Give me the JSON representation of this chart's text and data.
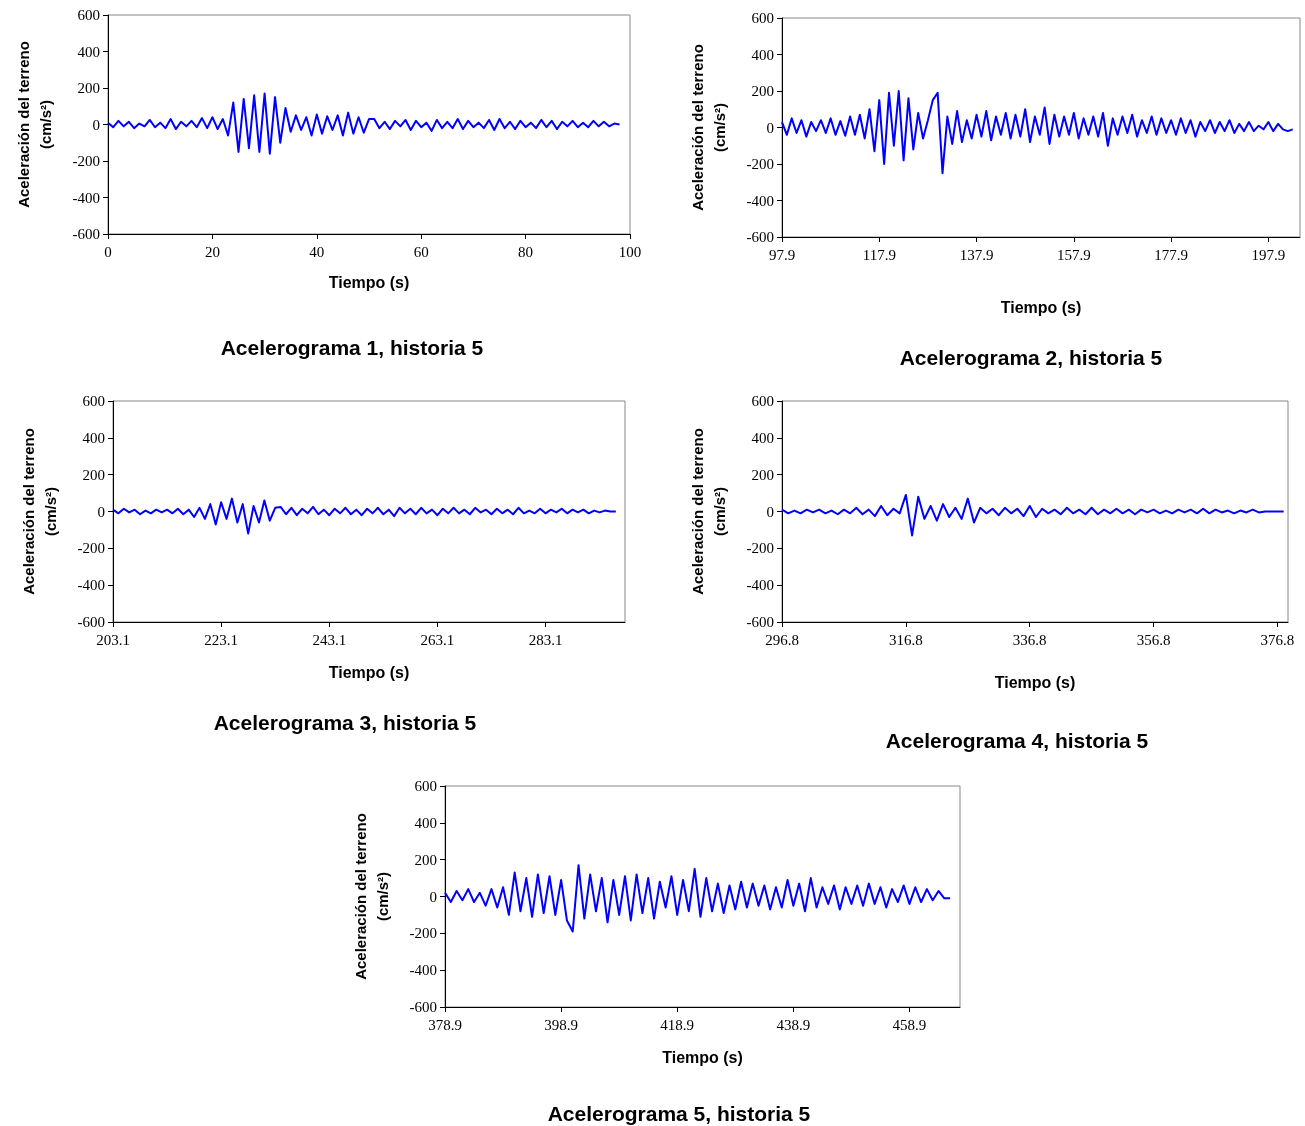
{
  "chart_data": [
    {
      "type": "line",
      "title": "Acelerograma 1, historia 5",
      "xlabel": "Tiempo (s)",
      "ylabel": "Aceleración del terreno\n(cm/s²)",
      "xlim": [
        0,
        100
      ],
      "xticks": [
        0,
        20,
        40,
        60,
        80,
        100
      ],
      "ylim": [
        -600,
        600
      ],
      "yticks": [
        -600,
        -400,
        -200,
        0,
        200,
        400,
        600
      ],
      "x": [
        0,
        1,
        2,
        3,
        4,
        5,
        6,
        7,
        8,
        9,
        10,
        11,
        12,
        13,
        14,
        15,
        16,
        17,
        18,
        19,
        20,
        21,
        22,
        23,
        24,
        25,
        26,
        27,
        28,
        29,
        30,
        31,
        32,
        33,
        34,
        35,
        36,
        37,
        38,
        39,
        40,
        41,
        42,
        43,
        44,
        45,
        46,
        47,
        48,
        49,
        50,
        51,
        52,
        53,
        54,
        55,
        56,
        57,
        58,
        59,
        60,
        61,
        62,
        63,
        64,
        65,
        66,
        67,
        68,
        69,
        70,
        71,
        72,
        73,
        74,
        75,
        76,
        77,
        78,
        79,
        80,
        81,
        82,
        83,
        84,
        85,
        86,
        87,
        88,
        89,
        90,
        91,
        92,
        93,
        94,
        95,
        96,
        97,
        98
      ],
      "series": [
        {
          "color": "#0000ff",
          "values": [
            10,
            -15,
            20,
            -10,
            15,
            -20,
            5,
            -10,
            25,
            -15,
            10,
            -20,
            30,
            -25,
            15,
            -10,
            20,
            -15,
            35,
            -20,
            40,
            -25,
            30,
            -60,
            120,
            -150,
            140,
            -130,
            160,
            -150,
            170,
            -160,
            150,
            -100,
            90,
            -40,
            50,
            -30,
            40,
            -60,
            55,
            -50,
            45,
            -30,
            50,
            -60,
            65,
            -50,
            40,
            -45,
            30,
            30,
            -20,
            15,
            -25,
            20,
            -10,
            25,
            -30,
            20,
            -15,
            10,
            -35,
            25,
            -20,
            15,
            -20,
            30,
            -25,
            20,
            -15,
            10,
            -20,
            25,
            -30,
            30,
            -20,
            15,
            -25,
            20,
            -15,
            10,
            -20,
            25,
            -15,
            20,
            -25,
            15,
            -10,
            20,
            -15,
            10,
            -15,
            20,
            -10,
            15,
            -10,
            5,
            0
          ]
        }
      ]
    },
    {
      "type": "line",
      "title": "Acelerograma 2, historia 5",
      "xlabel": "Tiempo (s)",
      "ylabel": "Aceleración del terreno\n(cm/s²)",
      "xlim": [
        97.9,
        204.4
      ],
      "xticks": [
        97.9,
        117.9,
        137.9,
        157.9,
        177.9,
        197.9
      ],
      "ylim": [
        -600,
        600
      ],
      "yticks": [
        -600,
        -400,
        -200,
        0,
        200,
        400,
        600
      ],
      "x": [
        97.9,
        98.9,
        99.9,
        100.9,
        101.9,
        102.9,
        103.9,
        104.9,
        105.9,
        106.9,
        107.9,
        108.9,
        109.9,
        110.9,
        111.9,
        112.9,
        113.9,
        114.9,
        115.9,
        116.9,
        117.9,
        118.9,
        119.9,
        120.9,
        121.9,
        122.9,
        123.9,
        124.9,
        125.9,
        126.9,
        127.9,
        128.9,
        129.9,
        130.9,
        131.9,
        132.9,
        133.9,
        134.9,
        135.9,
        136.9,
        137.9,
        138.9,
        139.9,
        140.9,
        141.9,
        142.9,
        143.9,
        144.9,
        145.9,
        146.9,
        147.9,
        148.9,
        149.9,
        150.9,
        151.9,
        152.9,
        153.9,
        154.9,
        155.9,
        156.9,
        157.9,
        158.9,
        159.9,
        160.9,
        161.9,
        162.9,
        163.9,
        164.9,
        165.9,
        166.9,
        167.9,
        168.9,
        169.9,
        170.9,
        171.9,
        172.9,
        173.9,
        174.9,
        175.9,
        176.9,
        177.9,
        178.9,
        179.9,
        180.9,
        181.9,
        182.9,
        183.9,
        184.9,
        185.9,
        186.9,
        187.9,
        188.9,
        189.9,
        190.9,
        191.9,
        192.9,
        193.9,
        194.9,
        195.9,
        196.9,
        197.9,
        198.9,
        199.9,
        200.9,
        201.9,
        202.9
      ],
      "series": [
        {
          "color": "#0000ff",
          "values": [
            30,
            -40,
            50,
            -30,
            40,
            -50,
            30,
            -20,
            40,
            -30,
            50,
            -40,
            35,
            -45,
            60,
            -40,
            70,
            -60,
            100,
            -130,
            150,
            -200,
            190,
            -100,
            200,
            -180,
            160,
            -120,
            80,
            -60,
            40,
            150,
            190,
            -250,
            60,
            -90,
            90,
            -80,
            40,
            -60,
            70,
            -50,
            90,
            -70,
            60,
            -40,
            80,
            -60,
            70,
            -50,
            100,
            -80,
            60,
            -40,
            110,
            -90,
            70,
            -50,
            60,
            -40,
            80,
            -60,
            50,
            -40,
            60,
            -50,
            80,
            -100,
            50,
            -40,
            60,
            -30,
            70,
            -50,
            40,
            -30,
            60,
            -40,
            50,
            -30,
            40,
            -40,
            50,
            -30,
            40,
            -50,
            30,
            -20,
            40,
            -30,
            30,
            -20,
            40,
            -30,
            20,
            -20,
            30,
            -20,
            10,
            -10,
            30,
            -20,
            20,
            -10,
            -20,
            -10
          ]
        }
      ]
    },
    {
      "type": "line",
      "title": "Acelerograma 3, historia 5",
      "xlabel": "Tiempo (s)",
      "ylabel": "Aceleración del terreno\n(cm/s²)",
      "xlim": [
        203.1,
        297.8
      ],
      "xticks": [
        203.1,
        223.1,
        243.1,
        263.1,
        283.1
      ],
      "ylim": [
        -600,
        600
      ],
      "yticks": [
        -600,
        -400,
        -200,
        0,
        200,
        400,
        600
      ],
      "x": [
        203.1,
        204.1,
        205.1,
        206.1,
        207.1,
        208.1,
        209.1,
        210.1,
        211.1,
        212.1,
        213.1,
        214.1,
        215.1,
        216.1,
        217.1,
        218.1,
        219.1,
        220.1,
        221.1,
        222.1,
        223.1,
        224.1,
        225.1,
        226.1,
        227.1,
        228.1,
        229.1,
        230.1,
        231.1,
        232.1,
        233.1,
        234.1,
        235.1,
        236.1,
        237.1,
        238.1,
        239.1,
        240.1,
        241.1,
        242.1,
        243.1,
        244.1,
        245.1,
        246.1,
        247.1,
        248.1,
        249.1,
        250.1,
        251.1,
        252.1,
        253.1,
        254.1,
        255.1,
        256.1,
        257.1,
        258.1,
        259.1,
        260.1,
        261.1,
        262.1,
        263.1,
        264.1,
        265.1,
        266.1,
        267.1,
        268.1,
        269.1,
        270.1,
        271.1,
        272.1,
        273.1,
        274.1,
        275.1,
        276.1,
        277.1,
        278.1,
        279.1,
        280.1,
        281.1,
        282.1,
        283.1,
        284.1,
        285.1,
        286.1,
        287.1,
        288.1,
        289.1,
        290.1,
        291.1,
        292.1,
        293.1,
        294.1,
        295.1,
        296.1
      ],
      "series": [
        {
          "color": "#0000ff",
          "values": [
            10,
            -10,
            15,
            -5,
            10,
            -15,
            5,
            -10,
            10,
            -5,
            10,
            -10,
            15,
            -15,
            10,
            -30,
            20,
            -40,
            40,
            -70,
            50,
            -40,
            70,
            -60,
            40,
            -120,
            30,
            -60,
            60,
            -50,
            20,
            25,
            -15,
            20,
            -20,
            15,
            -10,
            25,
            -15,
            10,
            -20,
            15,
            -10,
            20,
            -15,
            10,
            -20,
            15,
            -10,
            20,
            -15,
            10,
            -25,
            20,
            -10,
            15,
            -15,
            20,
            -10,
            10,
            -20,
            15,
            -10,
            20,
            -10,
            10,
            -15,
            20,
            -5,
            10,
            -15,
            15,
            -10,
            10,
            -15,
            20,
            -10,
            5,
            -10,
            15,
            -10,
            10,
            -5,
            15,
            -10,
            10,
            -5,
            10,
            -10,
            5,
            -5,
            5,
            0,
            0
          ]
        }
      ]
    },
    {
      "type": "line",
      "title": "Acelerograma 4, historia 5",
      "xlabel": "Tiempo (s)",
      "ylabel": "Aceleración del terreno\n(cm/s²)",
      "xlim": [
        296.8,
        378.5
      ],
      "xticks": [
        296.8,
        316.8,
        336.8,
        356.8,
        376.8
      ],
      "ylim": [
        -600,
        600
      ],
      "yticks": [
        -600,
        -400,
        -200,
        0,
        200,
        400,
        600
      ],
      "x": [
        296.8,
        297.8,
        298.8,
        299.8,
        300.8,
        301.8,
        302.8,
        303.8,
        304.8,
        305.8,
        306.8,
        307.8,
        308.8,
        309.8,
        310.8,
        311.8,
        312.8,
        313.8,
        314.8,
        315.8,
        316.8,
        317.8,
        318.8,
        319.8,
        320.8,
        321.8,
        322.8,
        323.8,
        324.8,
        325.8,
        326.8,
        327.8,
        328.8,
        329.8,
        330.8,
        331.8,
        332.8,
        333.8,
        334.8,
        335.8,
        336.8,
        337.8,
        338.8,
        339.8,
        340.8,
        341.8,
        342.8,
        343.8,
        344.8,
        345.8,
        346.8,
        347.8,
        348.8,
        349.8,
        350.8,
        351.8,
        352.8,
        353.8,
        354.8,
        355.8,
        356.8,
        357.8,
        358.8,
        359.8,
        360.8,
        361.8,
        362.8,
        363.8,
        364.8,
        365.8,
        366.8,
        367.8,
        368.8,
        369.8,
        370.8,
        371.8,
        372.8,
        373.8,
        374.8,
        375.8,
        376.8,
        377.8
      ],
      "series": [
        {
          "color": "#0000ff",
          "values": [
            10,
            -10,
            5,
            -10,
            10,
            -5,
            10,
            -10,
            5,
            -15,
            10,
            -10,
            20,
            -15,
            10,
            -25,
            30,
            -20,
            15,
            -10,
            90,
            -130,
            80,
            -40,
            30,
            -50,
            40,
            -30,
            20,
            -40,
            70,
            -60,
            20,
            -10,
            15,
            -20,
            20,
            -10,
            15,
            -25,
            30,
            -30,
            15,
            -10,
            10,
            -15,
            20,
            -10,
            10,
            -15,
            20,
            -15,
            10,
            -10,
            15,
            -10,
            10,
            -15,
            10,
            -5,
            10,
            -10,
            5,
            -10,
            10,
            -5,
            10,
            -10,
            15,
            -10,
            10,
            -5,
            5,
            -10,
            5,
            -5,
            10,
            -5,
            0,
            0,
            0,
            0
          ]
        }
      ]
    },
    {
      "type": "line",
      "title": "Acelerograma 5, historia 5",
      "xlabel": "Tiempo (s)",
      "ylabel": "Aceleración del terreno\n(cm/s²)",
      "xlim": [
        378.9,
        467.6
      ],
      "xticks": [
        378.9,
        398.9,
        418.9,
        438.9,
        458.9
      ],
      "ylim": [
        -600,
        600
      ],
      "yticks": [
        -600,
        -400,
        -200,
        0,
        200,
        400,
        600
      ],
      "x": [
        378.9,
        379.9,
        380.9,
        381.9,
        382.9,
        383.9,
        384.9,
        385.9,
        386.9,
        387.9,
        388.9,
        389.9,
        390.9,
        391.9,
        392.9,
        393.9,
        394.9,
        395.9,
        396.9,
        397.9,
        398.9,
        399.9,
        400.9,
        401.9,
        402.9,
        403.9,
        404.9,
        405.9,
        406.9,
        407.9,
        408.9,
        409.9,
        410.9,
        411.9,
        412.9,
        413.9,
        414.9,
        415.9,
        416.9,
        417.9,
        418.9,
        419.9,
        420.9,
        421.9,
        422.9,
        423.9,
        424.9,
        425.9,
        426.9,
        427.9,
        428.9,
        429.9,
        430.9,
        431.9,
        432.9,
        433.9,
        434.9,
        435.9,
        436.9,
        437.9,
        438.9,
        439.9,
        440.9,
        441.9,
        442.9,
        443.9,
        444.9,
        445.9,
        446.9,
        447.9,
        448.9,
        449.9,
        450.9,
        451.9,
        452.9,
        453.9,
        454.9,
        455.9,
        456.9,
        457.9,
        458.9,
        459.9,
        460.9,
        461.9,
        462.9,
        463.9,
        464.9,
        465.9
      ],
      "series": [
        {
          "color": "#0000ff",
          "values": [
            20,
            -30,
            30,
            -20,
            40,
            -30,
            20,
            -50,
            40,
            -60,
            50,
            -100,
            130,
            -80,
            100,
            -110,
            120,
            -90,
            110,
            -100,
            90,
            -130,
            -190,
            170,
            -120,
            120,
            -80,
            100,
            -140,
            90,
            -100,
            110,
            -130,
            120,
            -90,
            100,
            -120,
            80,
            -60,
            110,
            -100,
            90,
            -80,
            150,
            -110,
            100,
            -80,
            70,
            -90,
            60,
            -70,
            80,
            -60,
            70,
            -50,
            60,
            -70,
            50,
            -60,
            90,
            -50,
            70,
            -80,
            100,
            -60,
            50,
            -40,
            60,
            -70,
            50,
            -40,
            60,
            -50,
            70,
            -40,
            50,
            -60,
            40,
            -30,
            60,
            -40,
            50,
            -30,
            40,
            -20,
            30,
            -10,
            -10
          ]
        }
      ]
    }
  ]
}
